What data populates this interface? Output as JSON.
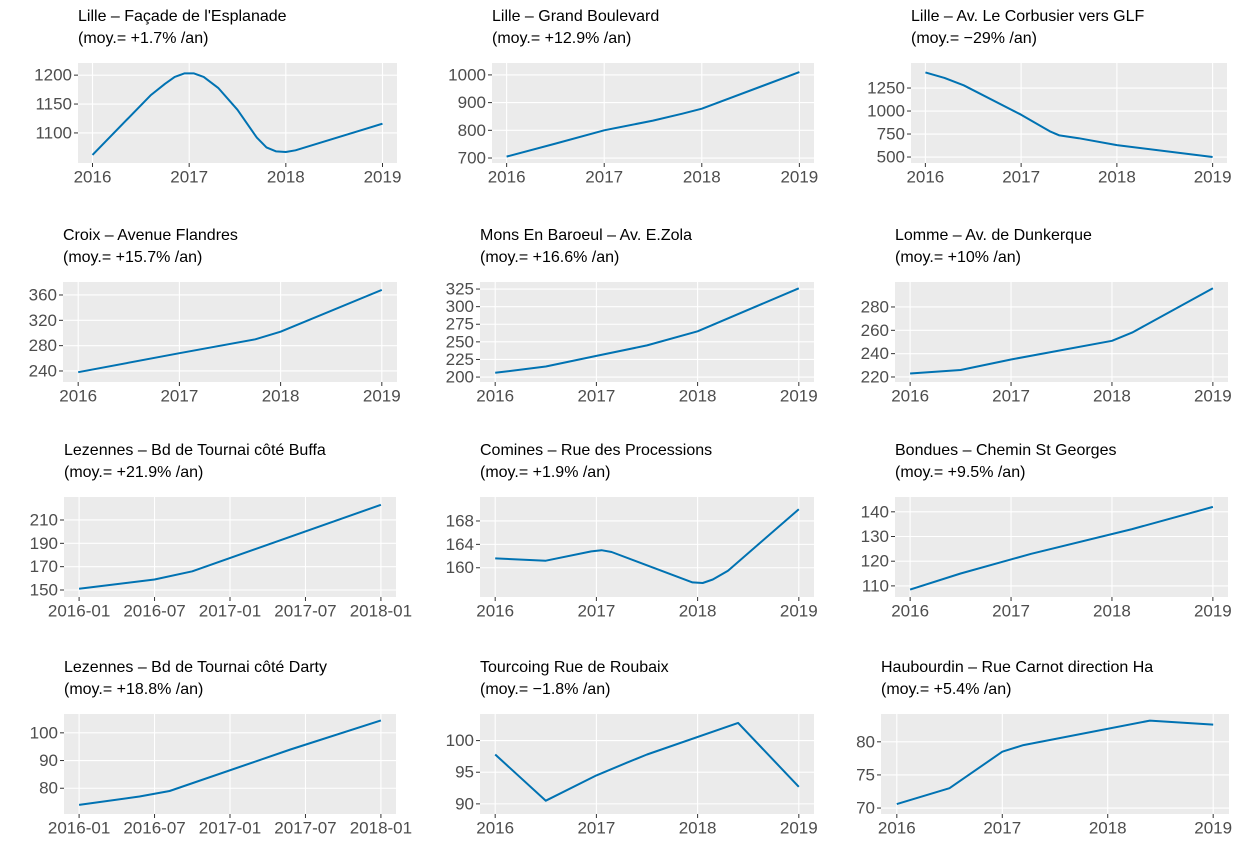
{
  "chart_data": [
    {
      "type": "line",
      "title": "Lille – Façade de l'Esplanade",
      "subtitle": "(moy.= +1.7% /an)",
      "color": "#0072B2",
      "grid": true,
      "x": [
        2016,
        2016.6,
        2016.75,
        2016.85,
        2016.95,
        2017.05,
        2017.15,
        2017.3,
        2017.5,
        2017.7,
        2017.8,
        2017.9,
        2018,
        2018.1,
        2019
      ],
      "values": [
        1062,
        1165,
        1185,
        1197,
        1203,
        1203,
        1197,
        1178,
        1140,
        1092,
        1075,
        1068,
        1067,
        1070,
        1116
      ],
      "xlim": [
        2015.85,
        2019.15
      ],
      "xticks": [
        2016,
        2017,
        2018,
        2019
      ],
      "ylim": [
        1048,
        1221
      ],
      "yticks": [
        1100,
        1150,
        1200
      ]
    },
    {
      "type": "line",
      "title": "Lille – Grand Boulevard",
      "subtitle": "(moy.= +12.9% /an)",
      "color": "#0072B2",
      "grid": true,
      "x": [
        2016,
        2016.5,
        2017,
        2017.5,
        2017.8,
        2018,
        2019
      ],
      "values": [
        705,
        752,
        800,
        835,
        860,
        878,
        1010
      ],
      "xlim": [
        2015.85,
        2019.15
      ],
      "xticks": [
        2016,
        2017,
        2018,
        2019
      ],
      "ylim": [
        682,
        1043
      ],
      "yticks": [
        700,
        800,
        900,
        1000
      ]
    },
    {
      "type": "line",
      "title": "Lille – Av. Le Corbusier vers GLF",
      "subtitle": "(moy.= −29% /an)",
      "color": "#0072B2",
      "grid": true,
      "x": [
        2016,
        2016.2,
        2016.4,
        2017,
        2017.3,
        2017.4,
        2017.6,
        2018,
        2019
      ],
      "values": [
        1420,
        1360,
        1280,
        960,
        780,
        735,
        705,
        630,
        500
      ],
      "xlim": [
        2015.85,
        2019.15
      ],
      "xticks": [
        2016,
        2017,
        2018,
        2019
      ],
      "ylim": [
        435,
        1522
      ],
      "yticks": [
        500,
        750,
        1000,
        1250
      ]
    },
    {
      "type": "line",
      "title": "Croix – Avenue Flandres",
      "subtitle": "(moy.= +15.7% /an)",
      "color": "#0072B2",
      "grid": true,
      "x": [
        2016,
        2017,
        2017.75,
        2018,
        2019
      ],
      "values": [
        238,
        268,
        290,
        302,
        368
      ],
      "xlim": [
        2015.85,
        2019.15
      ],
      "xticks": [
        2016,
        2017,
        2018,
        2019
      ],
      "ylim": [
        222.6,
        380.5
      ],
      "yticks": [
        240,
        280,
        320,
        360
      ]
    },
    {
      "type": "line",
      "title": "Mons En Baroeul – Av. E.Zola",
      "subtitle": "(moy.= +16.6% /an)",
      "color": "#0072B2",
      "grid": true,
      "x": [
        2016,
        2016.5,
        2017,
        2017.5,
        2018,
        2019
      ],
      "values": [
        206,
        215,
        230,
        245,
        265,
        326
      ],
      "xlim": [
        2015.85,
        2019.15
      ],
      "xticks": [
        2016,
        2017,
        2018,
        2019
      ],
      "ylim": [
        193,
        335
      ],
      "yticks": [
        200,
        225,
        250,
        275,
        300,
        325
      ]
    },
    {
      "type": "line",
      "title": "Lomme – Av. de Dunkerque",
      "subtitle": "(moy.= +10% /an)",
      "color": "#0072B2",
      "grid": true,
      "x": [
        2016,
        2016.5,
        2017,
        2018,
        2018.2,
        2019
      ],
      "values": [
        223,
        226,
        235,
        251,
        258,
        296
      ],
      "xlim": [
        2015.85,
        2019.15
      ],
      "xticks": [
        2016,
        2017,
        2018,
        2019
      ],
      "ylim": [
        215.7,
        301.4
      ],
      "yticks": [
        220,
        240,
        260,
        280
      ]
    },
    {
      "type": "line",
      "title": "Lezennes – Bd de Tournai côté Buffa",
      "subtitle": "(moy.= +21.9% /an)",
      "color": "#0072B2",
      "grid": true,
      "x": [
        2016,
        2016.5,
        2016.75,
        2018
      ],
      "values": [
        151,
        159,
        166,
        223
      ],
      "xlim": [
        2015.9,
        2018.1
      ],
      "xticks": [
        {
          "value": 2016,
          "label": "2016-01"
        },
        {
          "value": 2016.5,
          "label": "2016-07"
        },
        {
          "value": 2017,
          "label": "2017-01"
        },
        {
          "value": 2017.5,
          "label": "2017-07"
        },
        {
          "value": 2018,
          "label": "2018-01"
        }
      ],
      "ylim": [
        144,
        229.7
      ],
      "yticks": [
        150,
        170,
        190,
        210
      ]
    },
    {
      "type": "line",
      "title": "Comines – Rue des Processions",
      "subtitle": "(moy.= +1.9% /an)",
      "color": "#0072B2",
      "grid": true,
      "x": [
        2016,
        2016.5,
        2016.95,
        2017.05,
        2017.15,
        2017.95,
        2018.05,
        2018.15,
        2018.3,
        2019
      ],
      "values": [
        161.6,
        161.2,
        162.8,
        163,
        162.7,
        157.5,
        157.4,
        158,
        159.5,
        170
      ],
      "xlim": [
        2015.85,
        2019.15
      ],
      "xticks": [
        2016,
        2017,
        2018,
        2019
      ],
      "ylim": [
        155,
        172.1
      ],
      "yticks": [
        160,
        164,
        168
      ]
    },
    {
      "type": "line",
      "title": "Bondues – Chemin St Georges",
      "subtitle": "(moy.= +9.5% /an)",
      "color": "#0072B2",
      "grid": true,
      "x": [
        2016,
        2016.5,
        2017.2,
        2018.2,
        2019
      ],
      "values": [
        108.5,
        115,
        123,
        133,
        142
      ],
      "xlim": [
        2015.85,
        2019.15
      ],
      "xticks": [
        2016,
        2017,
        2018,
        2019
      ],
      "ylim": [
        105.5,
        146
      ],
      "yticks": [
        110,
        120,
        130,
        140
      ]
    },
    {
      "type": "line",
      "title": "Lezennes – Bd de Tournai côté Darty",
      "subtitle": "(moy.= +18.8% /an)",
      "color": "#0072B2",
      "grid": true,
      "x": [
        2016,
        2016.4,
        2016.6,
        2017.4,
        2018
      ],
      "values": [
        74,
        77,
        79,
        94,
        104.5
      ],
      "xlim": [
        2015.9,
        2018.1
      ],
      "xticks": [
        {
          "value": 2016,
          "label": "2016-01"
        },
        {
          "value": 2016.5,
          "label": "2016-07"
        },
        {
          "value": 2017,
          "label": "2017-01"
        },
        {
          "value": 2017.5,
          "label": "2017-07"
        },
        {
          "value": 2018,
          "label": "2018-01"
        }
      ],
      "ylim": [
        70.7,
        106.8
      ],
      "yticks": [
        80,
        90,
        100
      ]
    },
    {
      "type": "line",
      "title": "Tourcoing Rue de Roubaix",
      "subtitle": "(moy.= −1.8% /an)",
      "color": "#0072B2",
      "grid": true,
      "x": [
        2016,
        2016.5,
        2017,
        2017.3,
        2017.5,
        2018.4,
        2019
      ],
      "values": [
        97.8,
        90.5,
        94.5,
        96.5,
        97.8,
        102.8,
        92.7
      ],
      "xlim": [
        2015.85,
        2019.15
      ],
      "xticks": [
        2016,
        2017,
        2018,
        2019
      ],
      "ylim": [
        88.4,
        104.2
      ],
      "yticks": [
        90,
        95,
        100
      ]
    },
    {
      "type": "line",
      "title": "Haubourdin – Rue Carnot direction Ha",
      "subtitle": "(moy.= +5.4% /an)",
      "color": "#0072B2",
      "grid": true,
      "x": [
        2016,
        2016.5,
        2017,
        2017.2,
        2018.4,
        2019
      ],
      "values": [
        70.6,
        73,
        78.5,
        79.5,
        83.2,
        82.6
      ],
      "xlim": [
        2015.85,
        2019.15
      ],
      "xticks": [
        2016,
        2017,
        2018,
        2019
      ],
      "ylim": [
        69.1,
        84.2
      ],
      "yticks": [
        70,
        75,
        80
      ]
    }
  ]
}
